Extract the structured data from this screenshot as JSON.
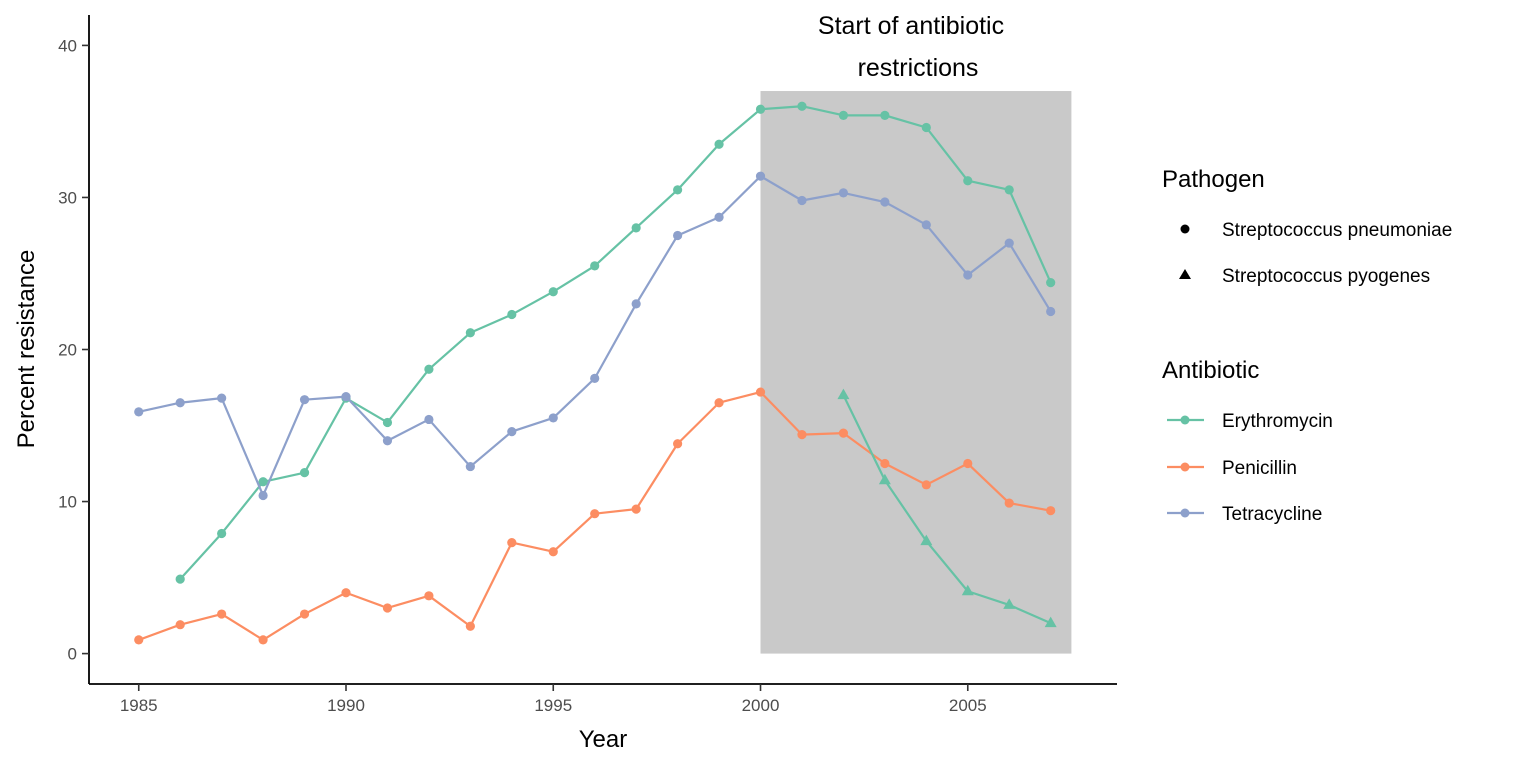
{
  "chart_data": {
    "type": "line",
    "xlabel": "Year",
    "ylabel": "Percent resistance",
    "xlim": [
      1983.8,
      2008.6
    ],
    "ylim": [
      -2,
      42
    ],
    "x_ticks": [
      1985,
      1990,
      1995,
      2000,
      2005
    ],
    "y_ticks": [
      0,
      10,
      20,
      30,
      40
    ],
    "grid": false,
    "annotation": {
      "lines": [
        "Start of antibiotic",
        "restrictions"
      ],
      "shaded_x": [
        2000,
        2007.5
      ],
      "shaded_y": [
        0,
        37
      ],
      "shade_color": "#c9c9c9"
    },
    "legend": {
      "placement": "right",
      "pathogen_title": "Pathogen",
      "pathogen_items": [
        {
          "label": "Streptococcus pneumoniae",
          "shape": "circle"
        },
        {
          "label": "Streptococcus pyogenes",
          "shape": "triangle"
        }
      ],
      "antibiotic_title": "Antibiotic",
      "antibiotic_items": [
        {
          "label": "Erythromycin",
          "color": "#66c2a5"
        },
        {
          "label": "Penicillin",
          "color": "#fc8d62"
        },
        {
          "label": "Tetracycline",
          "color": "#8da0cb"
        }
      ]
    },
    "series": [
      {
        "antibiotic": "Erythromycin",
        "pathogen": "Streptococcus pneumoniae",
        "shape": "circle",
        "color": "#66c2a5",
        "x": [
          1986,
          1987,
          1988,
          1989,
          1990,
          1991,
          1992,
          1993,
          1994,
          1995,
          1996,
          1997,
          1998,
          1999,
          2000,
          2001,
          2002,
          2003,
          2004,
          2005,
          2006,
          2007
        ],
        "y": [
          4.9,
          7.9,
          11.3,
          11.9,
          16.8,
          15.2,
          18.7,
          21.1,
          22.3,
          23.8,
          25.5,
          28.0,
          30.5,
          33.5,
          35.8,
          36.0,
          35.4,
          35.4,
          34.6,
          31.1,
          30.5,
          24.4
        ]
      },
      {
        "antibiotic": "Penicillin",
        "pathogen": "Streptococcus pneumoniae",
        "shape": "circle",
        "color": "#fc8d62",
        "x": [
          1985,
          1986,
          1987,
          1988,
          1989,
          1990,
          1991,
          1992,
          1993,
          1994,
          1995,
          1996,
          1997,
          1998,
          1999,
          2000,
          2001,
          2002,
          2003,
          2004,
          2005,
          2006,
          2007
        ],
        "y": [
          0.9,
          1.9,
          2.6,
          0.9,
          2.6,
          4.0,
          3.0,
          3.8,
          1.8,
          7.3,
          6.7,
          9.2,
          9.5,
          13.8,
          16.5,
          17.2,
          14.4,
          14.5,
          12.5,
          11.1,
          12.5,
          9.9,
          9.4
        ]
      },
      {
        "antibiotic": "Tetracycline",
        "pathogen": "Streptococcus pneumoniae",
        "shape": "circle",
        "color": "#8da0cb",
        "x": [
          1985,
          1986,
          1987,
          1988,
          1989,
          1990,
          1991,
          1992,
          1993,
          1994,
          1995,
          1996,
          1997,
          1998,
          1999,
          2000,
          2001,
          2002,
          2003,
          2004,
          2005,
          2006,
          2007
        ],
        "y": [
          15.9,
          16.5,
          16.8,
          10.4,
          16.7,
          16.9,
          14.0,
          15.4,
          12.3,
          14.6,
          15.5,
          18.1,
          23.0,
          27.5,
          28.7,
          31.4,
          29.8,
          30.3,
          29.7,
          28.2,
          24.9,
          27.0,
          22.5
        ]
      },
      {
        "antibiotic": "Erythromycin",
        "pathogen": "Streptococcus pyogenes",
        "shape": "triangle",
        "color": "#66c2a5",
        "x": [
          2002,
          2003,
          2004,
          2005,
          2006,
          2007
        ],
        "y": [
          17.0,
          11.4,
          7.4,
          4.1,
          3.2,
          2.0
        ]
      }
    ]
  }
}
